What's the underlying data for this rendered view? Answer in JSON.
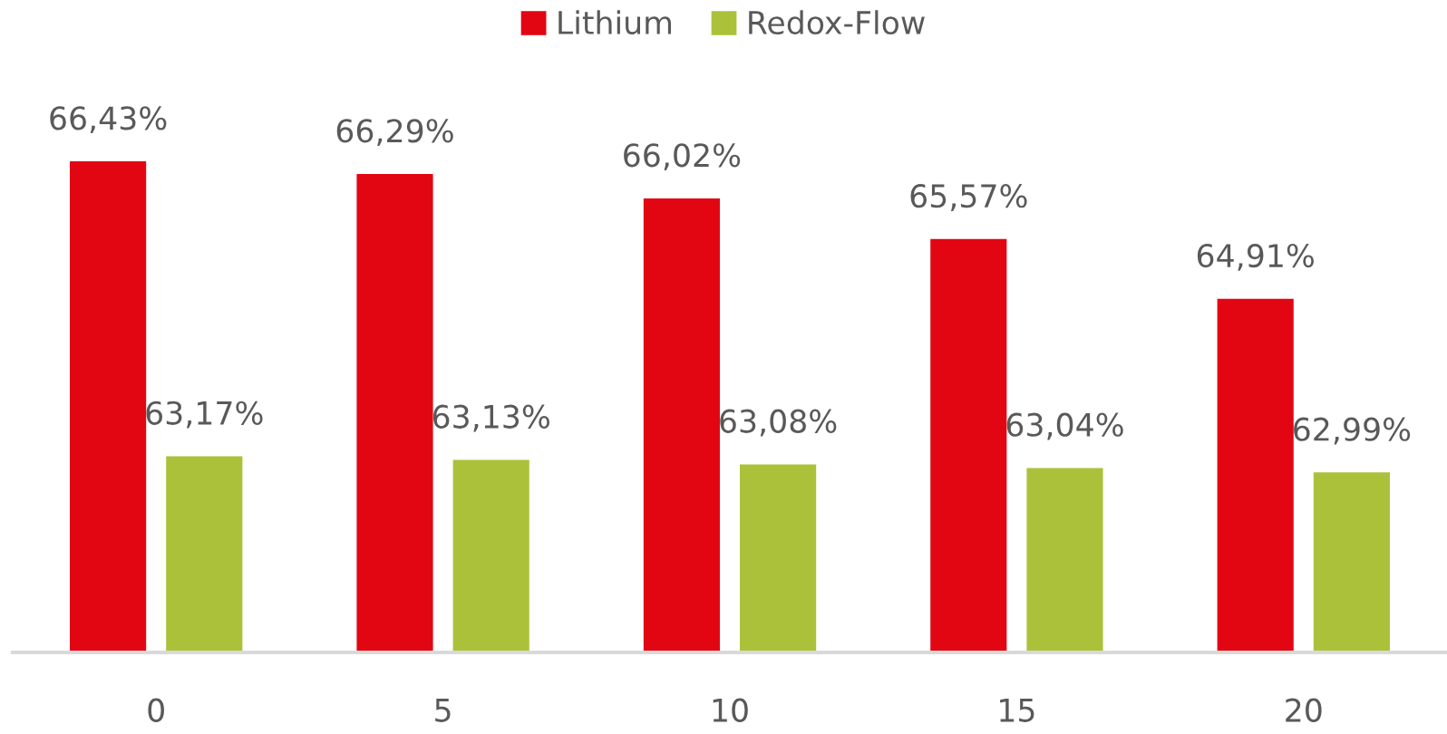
{
  "chart_data": {
    "type": "bar",
    "categories": [
      "0",
      "5",
      "10",
      "15",
      "20"
    ],
    "series": [
      {
        "name": "Lithium",
        "color": "#e20613",
        "values": [
          66.43,
          66.29,
          66.02,
          65.57,
          64.91
        ],
        "value_labels": [
          "66,43%",
          "66,29%",
          "66,02%",
          "65,57%",
          "64,91%"
        ]
      },
      {
        "name": "Redox-Flow",
        "color": "#acc13a",
        "values": [
          63.17,
          63.13,
          63.08,
          63.04,
          62.99
        ],
        "value_labels": [
          "63,17%",
          "63,13%",
          "63,08%",
          "63,04%",
          "62,99%"
        ]
      }
    ],
    "ylim": [
      61,
      66.43
    ],
    "tick_labels": "x",
    "grid": false,
    "legend": "top"
  }
}
